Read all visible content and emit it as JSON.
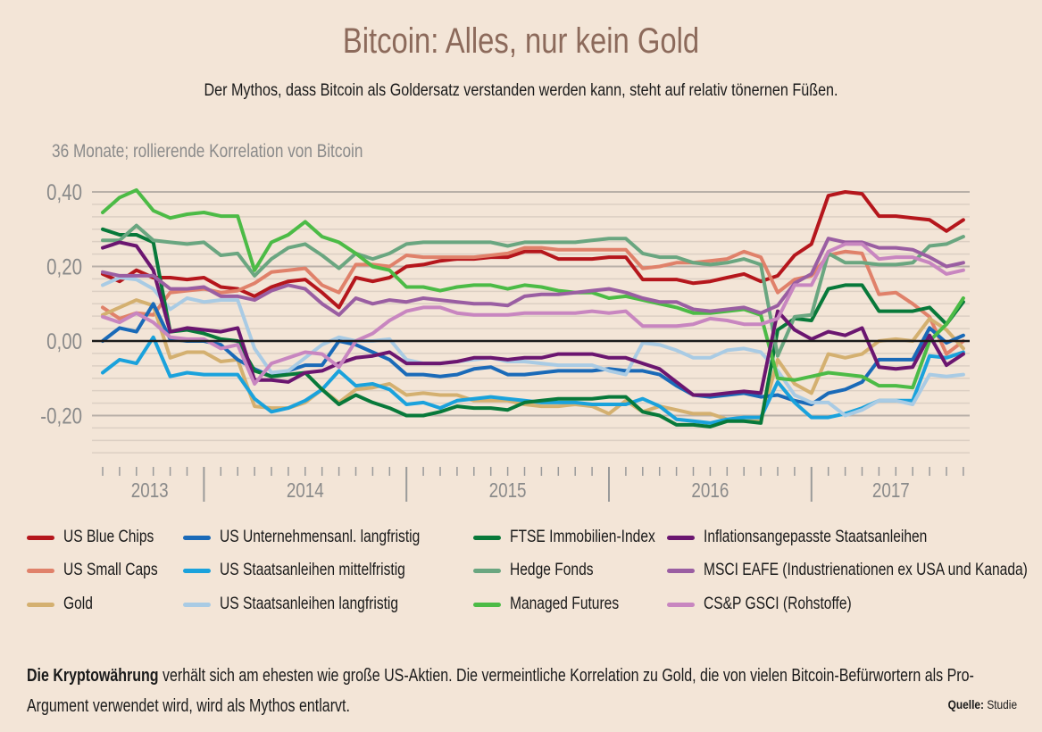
{
  "title": "Bitcoin: Alles, nur kein Gold",
  "subtitle": "Der Mythos, dass Bitcoin als Goldersatz verstanden werden kann, steht auf relativ tönernen Füßen.",
  "footer": {
    "bold": "Die Kryptowährung",
    "text": " verhält sich am ehesten wie große US-Aktien. Die vermeintliche Korrelation zu Gold, die von vielen Bitcoin-Befürwortern als Pro-Argument verwendet wird, wird als Mythos entlarvt.",
    "source_label": "Quelle:",
    "source": "Studie"
  },
  "chart_data": {
    "type": "line",
    "title": "",
    "ylabel": "36 Monate; rollierende Korrelation von Bitcoin",
    "xlabel": "",
    "ylim": [
      -0.333,
      0.433
    ],
    "yticks": [
      0.4,
      0.2,
      0.0,
      -0.2
    ],
    "ytick_labels": [
      "0,40",
      "0,20",
      "0,00",
      "-0,20"
    ],
    "xtick_labels": [
      "2013",
      "2014",
      "2015",
      "2016",
      "2017"
    ],
    "x_start": "2013-07",
    "x_end": "2017-10",
    "x_frequency": "monthly",
    "grid": true,
    "legend_placement": "bottom",
    "zero_line_color": "#1a1a1a",
    "series": [
      {
        "name": "US Blue Chips",
        "color": "#b5161c",
        "values": [
          0.18,
          0.16,
          0.19,
          0.17,
          0.17,
          0.165,
          0.17,
          0.145,
          0.14,
          0.12,
          0.145,
          0.16,
          0.165,
          0.13,
          0.09,
          0.17,
          0.16,
          0.17,
          0.2,
          0.205,
          0.215,
          0.22,
          0.22,
          0.225,
          0.225,
          0.24,
          0.24,
          0.22,
          0.22,
          0.22,
          0.225,
          0.225,
          0.165,
          0.165,
          0.165,
          0.155,
          0.16,
          0.17,
          0.18,
          0.16,
          0.175,
          0.23,
          0.26,
          0.39,
          0.4,
          0.395,
          0.335,
          0.335,
          0.33,
          0.325,
          0.295,
          0.325
        ]
      },
      {
        "name": "US Small Caps",
        "color": "#e0816a",
        "values": [
          0.09,
          0.06,
          0.075,
          0.07,
          0.13,
          0.135,
          0.14,
          0.13,
          0.135,
          0.155,
          0.185,
          0.19,
          0.195,
          0.15,
          0.13,
          0.205,
          0.205,
          0.2,
          0.23,
          0.225,
          0.225,
          0.225,
          0.225,
          0.23,
          0.235,
          0.25,
          0.25,
          0.245,
          0.245,
          0.245,
          0.245,
          0.245,
          0.195,
          0.2,
          0.21,
          0.21,
          0.215,
          0.22,
          0.24,
          0.225,
          0.13,
          0.165,
          0.175,
          0.23,
          0.24,
          0.235,
          0.125,
          0.13,
          0.1,
          0.065,
          -0.035,
          0.0
        ]
      },
      {
        "name": "Gold",
        "color": "#d4b070",
        "values": [
          0.07,
          0.09,
          0.11,
          0.095,
          -0.045,
          -0.03,
          -0.03,
          -0.055,
          -0.05,
          -0.175,
          -0.18,
          -0.18,
          -0.165,
          -0.13,
          -0.165,
          -0.13,
          -0.125,
          -0.115,
          -0.145,
          -0.14,
          -0.145,
          -0.145,
          -0.16,
          -0.16,
          -0.16,
          -0.17,
          -0.175,
          -0.175,
          -0.17,
          -0.175,
          -0.195,
          -0.16,
          -0.19,
          -0.175,
          -0.185,
          -0.195,
          -0.195,
          -0.21,
          -0.215,
          -0.215,
          -0.05,
          -0.115,
          -0.14,
          -0.035,
          -0.045,
          -0.035,
          0.0,
          0.005,
          0.0,
          0.06,
          0.03,
          -0.02
        ]
      },
      {
        "name": "US Unternehmensanl. langfristig",
        "color": "#1a6ab8",
        "values": [
          0.0,
          0.035,
          0.025,
          0.1,
          0.005,
          0.0,
          0.0,
          -0.01,
          -0.05,
          -0.075,
          -0.095,
          -0.08,
          -0.065,
          -0.065,
          0.0,
          -0.01,
          -0.03,
          -0.05,
          -0.09,
          -0.09,
          -0.095,
          -0.09,
          -0.075,
          -0.07,
          -0.09,
          -0.09,
          -0.085,
          -0.08,
          -0.08,
          -0.08,
          -0.075,
          -0.08,
          -0.08,
          -0.09,
          -0.12,
          -0.145,
          -0.15,
          -0.145,
          -0.14,
          -0.15,
          -0.145,
          -0.16,
          -0.17,
          -0.14,
          -0.13,
          -0.11,
          -0.05,
          -0.05,
          -0.05,
          0.035,
          -0.005,
          0.015
        ]
      },
      {
        "name": "US Staatsanleihen mittelfristig",
        "color": "#1aa2dc",
        "values": [
          -0.085,
          -0.05,
          -0.06,
          0.01,
          -0.095,
          -0.085,
          -0.09,
          -0.09,
          -0.09,
          -0.155,
          -0.19,
          -0.18,
          -0.16,
          -0.13,
          -0.08,
          -0.12,
          -0.115,
          -0.13,
          -0.17,
          -0.165,
          -0.18,
          -0.16,
          -0.155,
          -0.15,
          -0.155,
          -0.16,
          -0.165,
          -0.165,
          -0.165,
          -0.17,
          -0.17,
          -0.17,
          -0.155,
          -0.175,
          -0.21,
          -0.215,
          -0.22,
          -0.21,
          -0.205,
          -0.205,
          -0.11,
          -0.165,
          -0.205,
          -0.205,
          -0.195,
          -0.18,
          -0.16,
          -0.16,
          -0.16,
          -0.04,
          -0.045,
          -0.03
        ]
      },
      {
        "name": "US Staatsanleihen langfristig",
        "color": "#a9cbe4",
        "values": [
          0.15,
          0.17,
          0.165,
          0.14,
          0.085,
          0.115,
          0.105,
          0.11,
          0.11,
          -0.02,
          -0.085,
          -0.08,
          -0.045,
          -0.01,
          0.01,
          0.0,
          0.0,
          0.005,
          -0.05,
          -0.06,
          -0.06,
          -0.055,
          -0.05,
          -0.045,
          -0.055,
          -0.055,
          -0.06,
          -0.065,
          -0.065,
          -0.065,
          -0.08,
          -0.09,
          -0.005,
          -0.01,
          -0.025,
          -0.045,
          -0.045,
          -0.025,
          -0.02,
          -0.03,
          -0.08,
          -0.145,
          -0.165,
          -0.165,
          -0.2,
          -0.185,
          -0.16,
          -0.16,
          -0.17,
          -0.09,
          -0.095,
          -0.09
        ]
      },
      {
        "name": "FTSE Immobilien-Index",
        "color": "#08793a",
        "values": [
          0.3,
          0.285,
          0.285,
          0.265,
          0.025,
          0.03,
          0.02,
          0.005,
          0.0,
          -0.08,
          -0.095,
          -0.09,
          -0.085,
          -0.13,
          -0.17,
          -0.145,
          -0.165,
          -0.18,
          -0.2,
          -0.2,
          -0.19,
          -0.175,
          -0.18,
          -0.18,
          -0.185,
          -0.165,
          -0.16,
          -0.155,
          -0.155,
          -0.155,
          -0.15,
          -0.15,
          -0.19,
          -0.2,
          -0.225,
          -0.225,
          -0.23,
          -0.215,
          -0.215,
          -0.22,
          0.03,
          0.06,
          0.055,
          0.14,
          0.15,
          0.15,
          0.08,
          0.08,
          0.08,
          0.09,
          0.045,
          0.105
        ]
      },
      {
        "name": "Hedge Fonds",
        "color": "#6aa680",
        "values": [
          0.27,
          0.27,
          0.31,
          0.27,
          0.265,
          0.26,
          0.265,
          0.23,
          0.235,
          0.175,
          0.22,
          0.25,
          0.26,
          0.23,
          0.195,
          0.235,
          0.22,
          0.235,
          0.26,
          0.265,
          0.265,
          0.265,
          0.265,
          0.265,
          0.255,
          0.265,
          0.265,
          0.265,
          0.265,
          0.27,
          0.275,
          0.275,
          0.235,
          0.225,
          0.225,
          0.21,
          0.205,
          0.21,
          0.22,
          0.205,
          -0.04,
          0.065,
          0.07,
          0.235,
          0.21,
          0.21,
          0.205,
          0.205,
          0.21,
          0.255,
          0.26,
          0.28
        ]
      },
      {
        "name": "Managed Futures",
        "color": "#4cbb46",
        "values": [
          0.345,
          0.385,
          0.405,
          0.35,
          0.33,
          0.34,
          0.345,
          0.335,
          0.335,
          0.19,
          0.265,
          0.285,
          0.32,
          0.28,
          0.265,
          0.235,
          0.2,
          0.19,
          0.145,
          0.145,
          0.135,
          0.145,
          0.15,
          0.15,
          0.14,
          0.15,
          0.145,
          0.135,
          0.13,
          0.13,
          0.115,
          0.12,
          0.11,
          0.1,
          0.09,
          0.075,
          0.075,
          0.08,
          0.085,
          0.07,
          -0.1,
          -0.105,
          -0.095,
          -0.085,
          -0.09,
          -0.095,
          -0.12,
          -0.12,
          -0.125,
          0.0,
          0.045,
          0.115
        ]
      },
      {
        "name": "Inflationsangepasste Staatsanleihen",
        "color": "#6b1670",
        "values": [
          0.25,
          0.265,
          0.255,
          0.19,
          0.025,
          0.035,
          0.03,
          0.025,
          0.035,
          -0.105,
          -0.105,
          -0.11,
          -0.085,
          -0.08,
          -0.06,
          -0.045,
          -0.04,
          -0.03,
          -0.06,
          -0.06,
          -0.06,
          -0.055,
          -0.045,
          -0.045,
          -0.05,
          -0.045,
          -0.045,
          -0.035,
          -0.035,
          -0.035,
          -0.045,
          -0.045,
          -0.06,
          -0.075,
          -0.11,
          -0.145,
          -0.145,
          -0.14,
          -0.135,
          -0.14,
          0.08,
          0.03,
          0.005,
          0.025,
          0.015,
          0.035,
          -0.07,
          -0.075,
          -0.07,
          0.015,
          -0.065,
          -0.035
        ]
      },
      {
        "name": "MSCI EAFE (Industrienationen ex USA und Kanada)",
        "color": "#9a5ea2",
        "values": [
          0.185,
          0.175,
          0.175,
          0.175,
          0.14,
          0.14,
          0.145,
          0.12,
          0.12,
          0.11,
          0.135,
          0.15,
          0.14,
          0.1,
          0.07,
          0.115,
          0.1,
          0.11,
          0.105,
          0.115,
          0.11,
          0.105,
          0.1,
          0.1,
          0.095,
          0.12,
          0.125,
          0.125,
          0.13,
          0.135,
          0.14,
          0.13,
          0.115,
          0.105,
          0.105,
          0.085,
          0.08,
          0.085,
          0.09,
          0.075,
          0.095,
          0.155,
          0.18,
          0.275,
          0.265,
          0.265,
          0.25,
          0.25,
          0.245,
          0.225,
          0.2,
          0.21
        ]
      },
      {
        "name": "CS&P  GSCI (Rohstoffe)",
        "color": "#c886c0",
        "values": [
          0.065,
          0.05,
          0.075,
          0.05,
          0.01,
          0.005,
          0.005,
          -0.02,
          -0.01,
          -0.115,
          -0.06,
          -0.045,
          -0.03,
          -0.035,
          -0.07,
          0.0,
          0.02,
          0.055,
          0.08,
          0.09,
          0.09,
          0.075,
          0.07,
          0.07,
          0.07,
          0.075,
          0.075,
          0.075,
          0.075,
          0.08,
          0.075,
          0.08,
          0.04,
          0.04,
          0.04,
          0.045,
          0.06,
          0.055,
          0.045,
          0.045,
          0.06,
          0.15,
          0.15,
          0.24,
          0.26,
          0.26,
          0.22,
          0.225,
          0.225,
          0.21,
          0.18,
          0.19
        ]
      }
    ]
  }
}
